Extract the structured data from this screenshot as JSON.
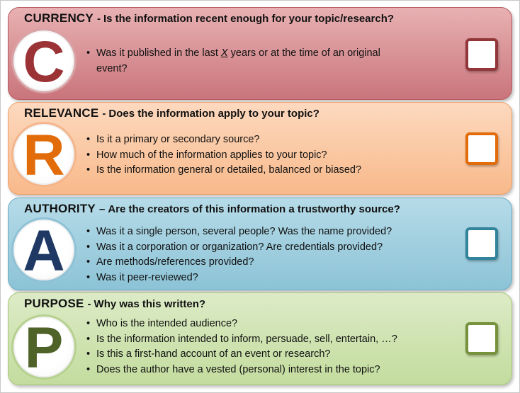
{
  "sections": [
    {
      "heading": "CURRENCY",
      "sep": "-",
      "question": "Is the information recent enough for your topic/research?",
      "letter": "C",
      "colors": {
        "panel_top": "#e8b1b3",
        "panel_bottom": "#c9757b",
        "border": "#b85a60",
        "letter": "#9b3236",
        "ring": "#d9a3a6",
        "check": "#93363a"
      },
      "bullets": [
        {
          "before": "Was it published in the last ",
          "emph": "X",
          "after": " years or at the time of an original",
          "cont": "event?"
        }
      ]
    },
    {
      "heading": "RELEVANCE",
      "sep": "-",
      "question": "Does the information apply to your topic?",
      "letter": "R",
      "colors": {
        "panel_top": "#fdd9bf",
        "panel_bottom": "#f8b98a",
        "border": "#eea06a",
        "letter": "#e36c0a",
        "ring": "#f4b58a",
        "check": "#e36c0a"
      },
      "bullets": [
        {
          "text": "Is it a primary or secondary source?"
        },
        {
          "text": "How much of the information applies to your topic?"
        },
        {
          "text": "Is the information general or detailed, balanced or biased?"
        }
      ]
    },
    {
      "heading": "AUTHORITY",
      "sep": "–",
      "question": "Are the creators of this information a trustworthy source?",
      "letter": "A",
      "colors": {
        "panel_top": "#b6dbe8",
        "panel_bottom": "#8cc3d6",
        "border": "#6aabc3",
        "letter": "#1f3864",
        "ring": "#8fc2d6",
        "check": "#31849b"
      },
      "bullets": [
        {
          "text": "Was it a single person, several people? Was the name provided?"
        },
        {
          "text": "Was it a corporation or organization? Are credentials provided?"
        },
        {
          "text": "Are methods/references provided?"
        },
        {
          "text": "Was it peer-reviewed?"
        }
      ]
    },
    {
      "heading": "PURPOSE",
      "sep": "-",
      "question": "Why was this written?",
      "letter": "P",
      "colors": {
        "panel_top": "#dcebc6",
        "panel_bottom": "#c3dc9e",
        "border": "#a7c77a",
        "letter": "#4f6228",
        "ring": "#b6d18f",
        "check": "#76923c"
      },
      "bullets": [
        {
          "text": "Who is the intended audience?"
        },
        {
          "text": "Is the information intended to inform, persuade, sell, entertain, …?"
        },
        {
          "text": "Is this a first-hand account of an event or research?"
        },
        {
          "text": "Does the author have a vested (personal) interest in the topic?"
        }
      ]
    }
  ]
}
